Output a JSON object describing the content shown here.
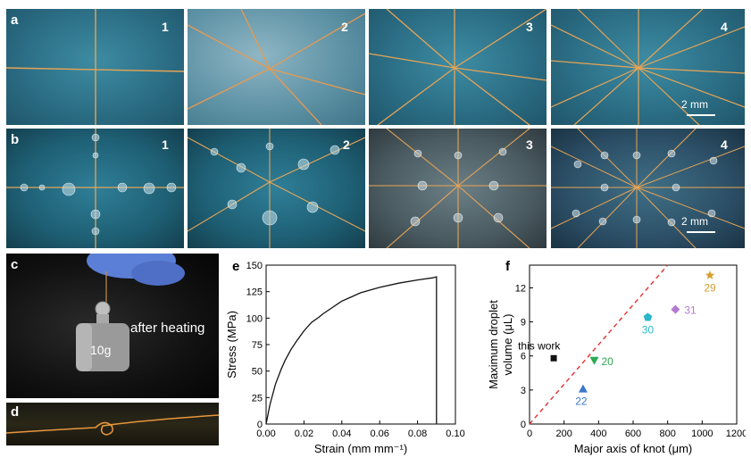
{
  "panels": {
    "a": {
      "label": "a",
      "numbers": [
        "1",
        "2",
        "3",
        "4"
      ],
      "scale_bar": "2 mm"
    },
    "b": {
      "label": "b",
      "numbers": [
        "1",
        "2",
        "3",
        "4"
      ],
      "scale_bar": "2 mm"
    },
    "c": {
      "label": "c",
      "weight_text": "10g",
      "caption": "after heating"
    },
    "d": {
      "label": "d"
    },
    "e": {
      "label": "e"
    },
    "f": {
      "label": "f"
    }
  },
  "colors": {
    "fiber": "#e8a455",
    "red_dashed": "#e53030"
  },
  "chart_data": [
    {
      "type": "line",
      "title": "",
      "xlabel": "Strain (mm mm⁻¹)",
      "ylabel": "Stress (MPa)",
      "xlim": [
        0.0,
        0.1
      ],
      "ylim": [
        0,
        150
      ],
      "xticks": [
        "0.00",
        "0.02",
        "0.04",
        "0.06",
        "0.08",
        "0.10"
      ],
      "yticks": [
        "0",
        "25",
        "50",
        "75",
        "100",
        "125",
        "150"
      ],
      "series": [
        {
          "name": "stress-strain",
          "x": [
            0,
            0.002,
            0.005,
            0.008,
            0.01,
            0.013,
            0.016,
            0.02,
            0.024,
            0.028,
            0.03,
            0.035,
            0.04,
            0.045,
            0.05,
            0.06,
            0.07,
            0.08,
            0.088,
            0.09,
            0.09
          ],
          "y": [
            0,
            18,
            38,
            52,
            60,
            70,
            78,
            88,
            96,
            101,
            104,
            110,
            116,
            120,
            124,
            129,
            133,
            136,
            138,
            139,
            0
          ]
        }
      ]
    },
    {
      "type": "scatter",
      "title": "",
      "xlabel": "Major axis of knot (μm)",
      "ylabel": "Maximum droplet volume (μL)",
      "ylabel_lines": [
        "Maximum droplet",
        "volume (μL)"
      ],
      "xlim": [
        0,
        1200
      ],
      "ylim": [
        0,
        14
      ],
      "xticks": [
        "0",
        "200",
        "400",
        "600",
        "800",
        "1000",
        "1200"
      ],
      "yticks": [
        "0",
        "3",
        "6",
        "9",
        "12"
      ],
      "points": [
        {
          "label": "this work",
          "x": 140,
          "y": 5.8,
          "marker": "square",
          "color": "#111111"
        },
        {
          "label": "22",
          "x": 310,
          "y": 3.1,
          "marker": "triangle-up",
          "color": "#3a78c9"
        },
        {
          "label": "20",
          "x": 375,
          "y": 5.6,
          "marker": "triangle-down",
          "color": "#2eaa55"
        },
        {
          "label": "30",
          "x": 685,
          "y": 9.4,
          "marker": "pentagon",
          "color": "#2ab7c9"
        },
        {
          "label": "31",
          "x": 845,
          "y": 10.1,
          "marker": "diamond",
          "color": "#b47ad0"
        },
        {
          "label": "29",
          "x": 1045,
          "y": 13.1,
          "marker": "star",
          "color": "#d4a030"
        }
      ],
      "reference_line": {
        "x": [
          0,
          800
        ],
        "y": [
          0,
          14
        ],
        "style": "dashed",
        "color": "#e53030"
      }
    }
  ]
}
